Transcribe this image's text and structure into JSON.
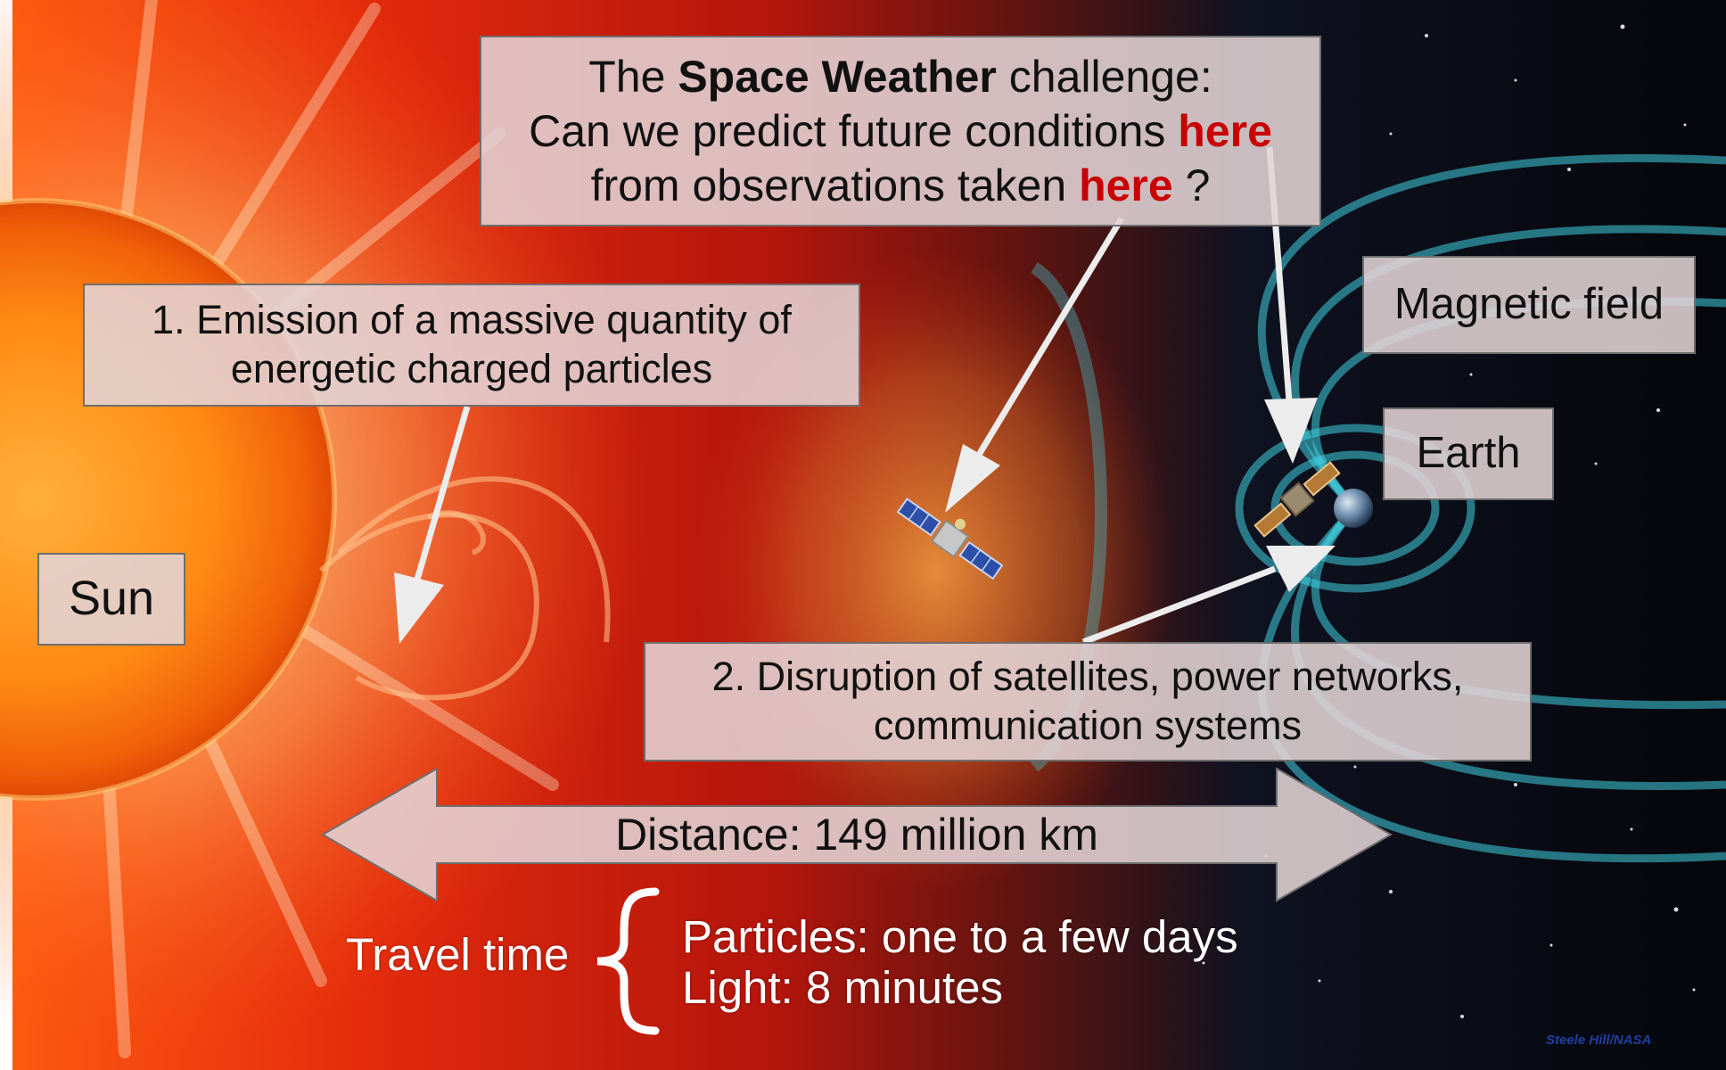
{
  "question": {
    "line1_pre": "The ",
    "line1_bold": "Space Weather",
    "line1_post": " challenge:",
    "line2_pre": "Can we predict future conditions ",
    "line2_here": "here",
    "line3_pre": "from observations taken ",
    "line3_here": "here",
    "line3_post": " ?"
  },
  "emission": {
    "line1": "1. Emission of a massive quantity of",
    "line2": "energetic charged particles"
  },
  "magnetic_field_label": "Magnetic field",
  "earth_label": "Earth",
  "sun_label": "Sun",
  "disruption": {
    "line1": "2. Disruption of satellites, power networks,",
    "line2": "communication systems"
  },
  "distance_label": "Distance: 149 million km",
  "travel": {
    "label": "Travel time",
    "particles": "Particles: one to a few days",
    "light": "Light: 8 minutes"
  },
  "credit": "Steele Hill/NASA",
  "colors": {
    "highlight": "#c80000",
    "sun_core": "#ff8c1a",
    "space": "#05060c",
    "field_lines": "#3fd0e0"
  }
}
